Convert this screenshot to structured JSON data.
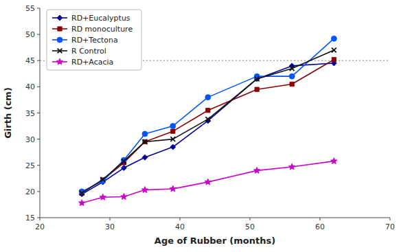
{
  "chart_data": {
    "type": "line",
    "x_label": "Age of Rubber (months)",
    "y_label": "Girth (cm)",
    "x": [
      26,
      29,
      32,
      35,
      39,
      44,
      51,
      56,
      62
    ],
    "series": [
      {
        "name": "RD+Eucalyptus",
        "color": "#000099",
        "marker": "diamond",
        "values": [
          19.5,
          21.8,
          24.5,
          26.5,
          28.5,
          33.5,
          41.5,
          44.0,
          44.5
        ]
      },
      {
        "name": "RD monoculture",
        "color": "#8B0000",
        "marker": "square",
        "values": [
          19.8,
          22.2,
          25.5,
          29.5,
          31.5,
          35.5,
          39.5,
          40.5,
          45.2
        ]
      },
      {
        "name": "RD+Tectona",
        "color": "#0055FF",
        "marker": "circle",
        "values": [
          20.0,
          22.0,
          26.0,
          31.0,
          32.5,
          38.0,
          42.0,
          42.0,
          49.2
        ]
      },
      {
        "name": "R Control",
        "color": "#111111",
        "marker": "x",
        "values": [
          19.7,
          22.3,
          25.8,
          29.5,
          30.0,
          33.8,
          41.5,
          43.5,
          47.0
        ]
      },
      {
        "name": "RD+Acacia",
        "color": "#CC00CC",
        "marker": "star",
        "values": [
          17.8,
          18.9,
          19.0,
          20.3,
          20.5,
          21.8,
          24.0,
          24.7,
          25.8
        ]
      }
    ],
    "reference_line": 45,
    "xlim": [
      20,
      70
    ],
    "ylim": [
      15,
      55
    ],
    "xticks": [
      20,
      30,
      40,
      50,
      60,
      70
    ],
    "yticks": [
      15,
      20,
      25,
      30,
      35,
      40,
      45,
      50,
      55
    ],
    "grid": false,
    "legend": "upper left"
  }
}
